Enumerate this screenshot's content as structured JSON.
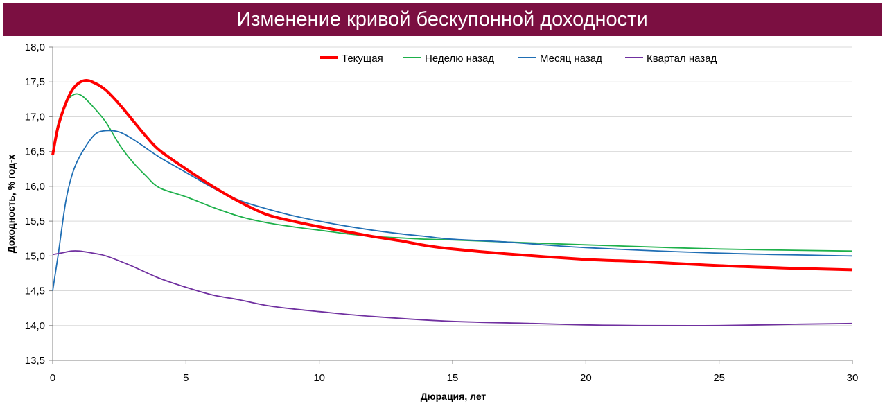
{
  "chart_data": {
    "type": "line",
    "title": "Изменение кривой бескупонной доходности",
    "xlabel": "Дюрация, лет",
    "ylabel": "Доходность, % год-х",
    "xlim": [
      0,
      30
    ],
    "ylim": [
      13.5,
      18.0
    ],
    "x_ticks": [
      "0",
      "5",
      "10",
      "15",
      "20",
      "25",
      "30"
    ],
    "y_ticks": [
      "13,5",
      "14,0",
      "14,5",
      "15,0",
      "15,5",
      "16,0",
      "16,5",
      "17,0",
      "17,5",
      "18,0"
    ],
    "grid": "horizontal",
    "legend_position": "top",
    "series": [
      {
        "name": "Текущая",
        "color": "#ff0000",
        "style": "thick",
        "points": [
          [
            0,
            16.45
          ],
          [
            0.2,
            16.85
          ],
          [
            0.5,
            17.2
          ],
          [
            0.8,
            17.42
          ],
          [
            1.2,
            17.52
          ],
          [
            1.6,
            17.48
          ],
          [
            2,
            17.38
          ],
          [
            2.5,
            17.18
          ],
          [
            3,
            16.95
          ],
          [
            3.5,
            16.72
          ],
          [
            4,
            16.52
          ],
          [
            5,
            16.25
          ],
          [
            6,
            16.0
          ],
          [
            7,
            15.78
          ],
          [
            8,
            15.6
          ],
          [
            9,
            15.5
          ],
          [
            10,
            15.42
          ],
          [
            11,
            15.35
          ],
          [
            12,
            15.28
          ],
          [
            13,
            15.22
          ],
          [
            14,
            15.15
          ],
          [
            15,
            15.1
          ],
          [
            17,
            15.03
          ],
          [
            20,
            14.95
          ],
          [
            22,
            14.92
          ],
          [
            25,
            14.86
          ],
          [
            28,
            14.82
          ],
          [
            30,
            14.8
          ]
        ]
      },
      {
        "name": "Неделю назад",
        "color": "#1db04a",
        "style": "thin",
        "points": [
          [
            0,
            16.5
          ],
          [
            0.2,
            16.9
          ],
          [
            0.5,
            17.2
          ],
          [
            0.8,
            17.32
          ],
          [
            1.1,
            17.3
          ],
          [
            1.5,
            17.15
          ],
          [
            2,
            16.92
          ],
          [
            2.5,
            16.6
          ],
          [
            3,
            16.35
          ],
          [
            3.5,
            16.15
          ],
          [
            4,
            15.98
          ],
          [
            5,
            15.85
          ],
          [
            6,
            15.7
          ],
          [
            7,
            15.57
          ],
          [
            8,
            15.48
          ],
          [
            9,
            15.42
          ],
          [
            10,
            15.37
          ],
          [
            11,
            15.32
          ],
          [
            12,
            15.28
          ],
          [
            13,
            15.26
          ],
          [
            14,
            15.24
          ],
          [
            15,
            15.23
          ],
          [
            17,
            15.2
          ],
          [
            20,
            15.16
          ],
          [
            25,
            15.1
          ],
          [
            30,
            15.07
          ]
        ]
      },
      {
        "name": "Месяц назад",
        "color": "#1f6eb4",
        "style": "thin",
        "points": [
          [
            0,
            14.5
          ],
          [
            0.2,
            15.0
          ],
          [
            0.5,
            15.8
          ],
          [
            0.8,
            16.25
          ],
          [
            1.2,
            16.55
          ],
          [
            1.6,
            16.75
          ],
          [
            2,
            16.8
          ],
          [
            2.5,
            16.78
          ],
          [
            3,
            16.68
          ],
          [
            3.5,
            16.55
          ],
          [
            4,
            16.42
          ],
          [
            5,
            16.2
          ],
          [
            6,
            15.98
          ],
          [
            7,
            15.8
          ],
          [
            8,
            15.68
          ],
          [
            9,
            15.58
          ],
          [
            10,
            15.5
          ],
          [
            11,
            15.43
          ],
          [
            12,
            15.37
          ],
          [
            13,
            15.32
          ],
          [
            14,
            15.28
          ],
          [
            15,
            15.24
          ],
          [
            17,
            15.2
          ],
          [
            20,
            15.12
          ],
          [
            25,
            15.04
          ],
          [
            30,
            15.0
          ]
        ]
      },
      {
        "name": "Квартал назад",
        "color": "#7030a0",
        "style": "thin",
        "points": [
          [
            0,
            15.02
          ],
          [
            0.3,
            15.04
          ],
          [
            0.7,
            15.07
          ],
          [
            1,
            15.07
          ],
          [
            1.5,
            15.04
          ],
          [
            2,
            15.0
          ],
          [
            3,
            14.85
          ],
          [
            4,
            14.68
          ],
          [
            5,
            14.55
          ],
          [
            6,
            14.44
          ],
          [
            7,
            14.37
          ],
          [
            8,
            14.29
          ],
          [
            9,
            14.24
          ],
          [
            10,
            14.2
          ],
          [
            12,
            14.13
          ],
          [
            15,
            14.06
          ],
          [
            18,
            14.03
          ],
          [
            20,
            14.01
          ],
          [
            22,
            14.0
          ],
          [
            25,
            14.0
          ],
          [
            28,
            14.02
          ],
          [
            30,
            14.03
          ]
        ]
      }
    ]
  }
}
